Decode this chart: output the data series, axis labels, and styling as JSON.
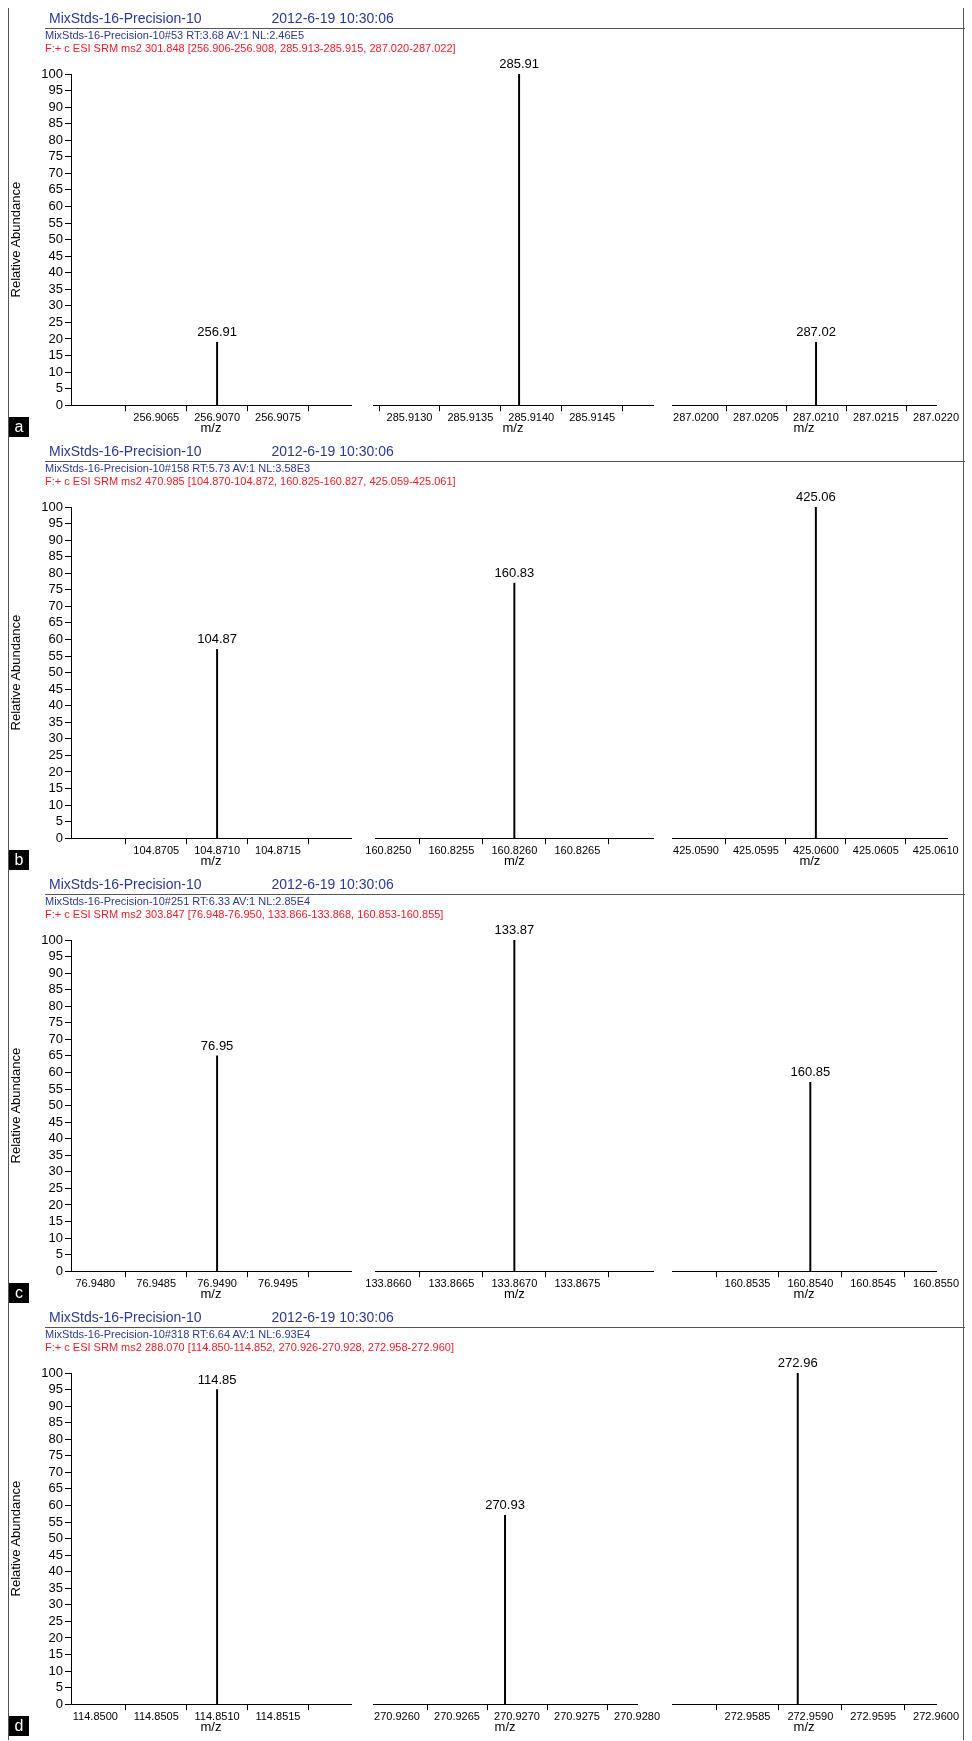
{
  "chart_data": [
    {
      "type": "bar",
      "title": "MixStds-16-Precision-10",
      "subtitle": "MixStds-16-Precision-10#53 RT:3.68 AV:1 NL:2.46E5",
      "ylabel": "Relative Abundance",
      "xlabel": "m/z",
      "annotations": [
        "2012-6-19 10:30:06",
        "F:+ c ESI SRM ms2 301.848 [256.906-256.908, 285.913-285.915, 287.020-287.022]",
        "a",
        {
          "text": "256.91",
          "x": 256.907,
          "y": 19
        }
      ],
      "x": [
        256.907
      ],
      "values": [
        19
      ],
      "color": "#000000",
      "xlim": [
        256.9058,
        256.9081
      ],
      "xticks": [
        {
          "value": 256.9065,
          "label": "256.9065"
        },
        {
          "value": 256.907,
          "label": "256.9070"
        },
        {
          "value": 256.9075,
          "label": "256.9075"
        }
      ],
      "ylim": [
        0,
        100
      ],
      "yticks": [
        0,
        5,
        10,
        15,
        20,
        25,
        30,
        35,
        40,
        45,
        50,
        55,
        60,
        65,
        70,
        75,
        80,
        85,
        90,
        95,
        100
      ]
    },
    {
      "type": "bar",
      "xlabel": "m/z",
      "annotations": [
        {
          "text": "285.91",
          "x": 285.9139,
          "y": 100
        }
      ],
      "x": [
        285.9139
      ],
      "values": [
        100
      ],
      "color": "#000000",
      "xlim": [
        285.9127,
        285.915
      ],
      "xticks": [
        {
          "value": 285.913,
          "label": "285.9130"
        },
        {
          "value": 285.9135,
          "label": "285.9135"
        },
        {
          "value": 285.914,
          "label": "285.9140"
        },
        {
          "value": 285.9145,
          "label": "285.9145"
        }
      ],
      "ylim": [
        0,
        100
      ],
      "yticks": [
        0,
        5,
        10,
        15,
        20,
        25,
        30,
        35,
        40,
        45,
        50,
        55,
        60,
        65,
        70,
        75,
        80,
        85,
        90,
        95,
        100
      ],
      "tick_labels": "x"
    },
    {
      "type": "bar",
      "xlabel": "m/z",
      "annotations": [
        {
          "text": "287.02",
          "x": 287.021,
          "y": 19
        }
      ],
      "x": [
        287.021
      ],
      "values": [
        19
      ],
      "color": "#000000",
      "xlim": [
        287.0198,
        287.022
      ],
      "xticks": [
        {
          "value": 287.02,
          "label": "287.0200"
        },
        {
          "value": 287.0205,
          "label": "287.0205"
        },
        {
          "value": 287.021,
          "label": "287.0210"
        },
        {
          "value": 287.0215,
          "label": "287.0215"
        },
        {
          "value": 287.022,
          "label": "287.0220"
        }
      ],
      "ylim": [
        0,
        100
      ],
      "yticks": [
        0,
        5,
        10,
        15,
        20,
        25,
        30,
        35,
        40,
        45,
        50,
        55,
        60,
        65,
        70,
        75,
        80,
        85,
        90,
        95,
        100
      ],
      "tick_labels": "x"
    },
    {
      "type": "bar",
      "title": "MixStds-16-Precision-10",
      "subtitle": "MixStds-16-Precision-10#158 RT:5.73 AV:1 NL:3.58E3",
      "ylabel": "Relative Abundance",
      "xlabel": "m/z",
      "annotations": [
        "2012-6-19 10:30:06",
        "F:+ c ESI SRM ms2 470.985 [104.870-104.872, 160.825-160.827, 425.059-425.061]",
        "b",
        {
          "text": "104.87",
          "x": 104.871,
          "y": 57
        }
      ],
      "x": [
        104.871
      ],
      "values": [
        57
      ],
      "color": "#000000",
      "xlim": [
        104.8698,
        104.8721
      ],
      "xticks": [
        {
          "value": 104.8705,
          "label": "104.8705"
        },
        {
          "value": 104.871,
          "label": "104.8710"
        },
        {
          "value": 104.8715,
          "label": "104.8715"
        }
      ],
      "ylim": [
        0,
        100
      ],
      "yticks": [
        0,
        5,
        10,
        15,
        20,
        25,
        30,
        35,
        40,
        45,
        50,
        55,
        60,
        65,
        70,
        75,
        80,
        85,
        90,
        95,
        100
      ]
    },
    {
      "type": "bar",
      "xlabel": "m/z",
      "annotations": [
        {
          "text": "160.83",
          "x": 160.826,
          "y": 77
        }
      ],
      "x": [
        160.826
      ],
      "values": [
        77
      ],
      "color": "#000000",
      "xlim": [
        160.8249,
        160.8271
      ],
      "xticks": [
        {
          "value": 160.825,
          "label": "160.8250"
        },
        {
          "value": 160.8255,
          "label": "160.8255"
        },
        {
          "value": 160.826,
          "label": "160.8260"
        },
        {
          "value": 160.8265,
          "label": "160.8265"
        }
      ],
      "ylim": [
        0,
        100
      ],
      "yticks": [
        0,
        5,
        10,
        15,
        20,
        25,
        30,
        35,
        40,
        45,
        50,
        55,
        60,
        65,
        70,
        75,
        80,
        85,
        90,
        95,
        100
      ],
      "tick_labels": "x"
    },
    {
      "type": "bar",
      "xlabel": "m/z",
      "annotations": [
        {
          "text": "425.06",
          "x": 425.06,
          "y": 100
        }
      ],
      "x": [
        425.06
      ],
      "values": [
        100
      ],
      "color": "#000000",
      "xlim": [
        425.0588,
        425.0611
      ],
      "xticks": [
        {
          "value": 425.059,
          "label": "425.0590"
        },
        {
          "value": 425.0595,
          "label": "425.0595"
        },
        {
          "value": 425.06,
          "label": "425.0600"
        },
        {
          "value": 425.0605,
          "label": "425.0605"
        },
        {
          "value": 425.061,
          "label": "425.0610"
        }
      ],
      "ylim": [
        0,
        100
      ],
      "yticks": [
        0,
        5,
        10,
        15,
        20,
        25,
        30,
        35,
        40,
        45,
        50,
        55,
        60,
        65,
        70,
        75,
        80,
        85,
        90,
        95,
        100
      ],
      "tick_labels": "x"
    },
    {
      "type": "bar",
      "title": "MixStds-16-Precision-10",
      "subtitle": "MixStds-16-Precision-10#251 RT:6.33 AV:1 NL:2.85E4",
      "ylabel": "Relative Abundance",
      "xlabel": "m/z",
      "annotations": [
        "2012-6-19 10:30:06",
        "F:+ c ESI SRM ms2 303.847 [76.948-76.950, 133.866-133.868, 160.853-160.855]",
        "c",
        {
          "text": "76.95",
          "x": 76.949,
          "y": 65
        }
      ],
      "x": [
        76.949
      ],
      "values": [
        65
      ],
      "color": "#000000",
      "xlim": [
        76.9478,
        76.9501
      ],
      "xticks": [
        {
          "value": 76.948,
          "label": "76.9480"
        },
        {
          "value": 76.9485,
          "label": "76.9485"
        },
        {
          "value": 76.949,
          "label": "76.9490"
        },
        {
          "value": 76.9495,
          "label": "76.9495"
        }
      ],
      "ylim": [
        0,
        100
      ],
      "yticks": [
        0,
        5,
        10,
        15,
        20,
        25,
        30,
        35,
        40,
        45,
        50,
        55,
        60,
        65,
        70,
        75,
        80,
        85,
        90,
        95,
        100
      ]
    },
    {
      "type": "bar",
      "xlabel": "m/z",
      "annotations": [
        {
          "text": "133.87",
          "x": 133.867,
          "y": 100
        }
      ],
      "x": [
        133.867
      ],
      "values": [
        100
      ],
      "color": "#000000",
      "xlim": [
        133.8659,
        133.8681
      ],
      "xticks": [
        {
          "value": 133.866,
          "label": "133.8660"
        },
        {
          "value": 133.8665,
          "label": "133.8665"
        },
        {
          "value": 133.867,
          "label": "133.8670"
        },
        {
          "value": 133.8675,
          "label": "133.8675"
        }
      ],
      "ylim": [
        0,
        100
      ],
      "yticks": [
        0,
        5,
        10,
        15,
        20,
        25,
        30,
        35,
        40,
        45,
        50,
        55,
        60,
        65,
        70,
        75,
        80,
        85,
        90,
        95,
        100
      ],
      "tick_labels": "x"
    },
    {
      "type": "bar",
      "xlabel": "m/z",
      "annotations": [
        {
          "text": "160.85",
          "x": 160.854,
          "y": 57
        }
      ],
      "x": [
        160.854
      ],
      "values": [
        57
      ],
      "color": "#000000",
      "xlim": [
        160.8529,
        160.855
      ],
      "xticks": [
        {
          "value": 160.8535,
          "label": "160.8535"
        },
        {
          "value": 160.854,
          "label": "160.8540"
        },
        {
          "value": 160.8545,
          "label": "160.8545"
        },
        {
          "value": 160.855,
          "label": "160.8550"
        }
      ],
      "ylim": [
        0,
        100
      ],
      "yticks": [
        0,
        5,
        10,
        15,
        20,
        25,
        30,
        35,
        40,
        45,
        50,
        55,
        60,
        65,
        70,
        75,
        80,
        85,
        90,
        95,
        100
      ],
      "tick_labels": "x"
    },
    {
      "type": "bar",
      "title": "MixStds-16-Precision-10",
      "subtitle": "MixStds-16-Precision-10#318 RT:6.64 AV:1 NL:6.93E4",
      "ylabel": "Relative Abundance",
      "xlabel": "m/z",
      "annotations": [
        "2012-6-19 10:30:06",
        "F:+ c ESI SRM ms2 288.070 [114.850-114.852, 270.926-270.928, 272.958-272.960]",
        "d",
        {
          "text": "114.85",
          "x": 114.851,
          "y": 95
        }
      ],
      "x": [
        114.851
      ],
      "values": [
        95
      ],
      "color": "#000000",
      "xlim": [
        114.8498,
        114.8521
      ],
      "xticks": [
        {
          "value": 114.85,
          "label": "114.8500"
        },
        {
          "value": 114.8505,
          "label": "114.8505"
        },
        {
          "value": 114.851,
          "label": "114.8510"
        },
        {
          "value": 114.8515,
          "label": "114.8515"
        }
      ],
      "ylim": [
        0,
        100
      ],
      "yticks": [
        0,
        5,
        10,
        15,
        20,
        25,
        30,
        35,
        40,
        45,
        50,
        55,
        60,
        65,
        70,
        75,
        80,
        85,
        90,
        95,
        100
      ]
    },
    {
      "type": "bar",
      "xlabel": "m/z",
      "annotations": [
        {
          "text": "270.93",
          "x": 270.9269,
          "y": 57
        }
      ],
      "x": [
        270.9269
      ],
      "values": [
        57
      ],
      "color": "#000000",
      "xlim": [
        270.9258,
        270.928
      ],
      "xticks": [
        {
          "value": 270.926,
          "label": "270.9260"
        },
        {
          "value": 270.9265,
          "label": "270.9265"
        },
        {
          "value": 270.927,
          "label": "270.9270"
        },
        {
          "value": 270.9275,
          "label": "270.9275"
        },
        {
          "value": 270.928,
          "label": "270.9280"
        }
      ],
      "ylim": [
        0,
        100
      ],
      "yticks": [
        0,
        5,
        10,
        15,
        20,
        25,
        30,
        35,
        40,
        45,
        50,
        55,
        60,
        65,
        70,
        75,
        80,
        85,
        90,
        95,
        100
      ],
      "tick_labels": "x"
    },
    {
      "type": "bar",
      "xlabel": "m/z",
      "annotations": [
        {
          "text": "272.96",
          "x": 272.9589,
          "y": 100
        }
      ],
      "x": [
        272.9589
      ],
      "values": [
        100
      ],
      "color": "#000000",
      "xlim": [
        272.9579,
        272.96
      ],
      "xticks": [
        {
          "value": 272.9585,
          "label": "272.9585"
        },
        {
          "value": 272.959,
          "label": "272.9590"
        },
        {
          "value": 272.9595,
          "label": "272.9595"
        },
        {
          "value": 272.96,
          "label": "272.9600"
        }
      ],
      "ylim": [
        0,
        100
      ],
      "yticks": [
        0,
        5,
        10,
        15,
        20,
        25,
        30,
        35,
        40,
        45,
        50,
        55,
        60,
        65,
        70,
        75,
        80,
        85,
        90,
        95,
        100
      ],
      "tick_labels": "x"
    }
  ]
}
